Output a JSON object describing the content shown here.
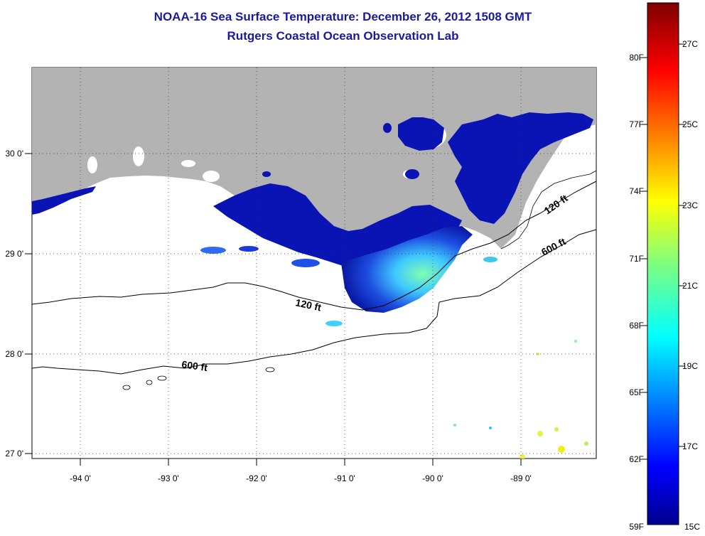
{
  "title": "NOAA-16 Sea Surface Temperature:  December 26, 2012 1508 GMT",
  "subtitle": "Rutgers Coastal Ocean Observation Lab",
  "map": {
    "lon_ticks": [
      "-94 0'",
      "-93 0'",
      "-92 0'",
      "-91 0'",
      "-90 0'",
      "-89 0'"
    ],
    "lat_ticks": [
      "30 0'",
      "29 0'",
      "28 0'",
      "27 0'"
    ],
    "contour_labels": [
      "120 ft",
      "600 ft",
      "120 ft",
      "600 ft"
    ],
    "land_color": "#b3b3b3"
  },
  "colorbar": {
    "fahrenheit_labels": [
      "80F",
      "77F",
      "74F",
      "71F",
      "68F",
      "65F",
      "62F",
      "59F"
    ],
    "celsius_labels": [
      "27C",
      "25C",
      "23C",
      "21C",
      "19C",
      "17C",
      "15C"
    ],
    "colormap": "jet",
    "range_celsius": [
      15,
      28
    ]
  }
}
